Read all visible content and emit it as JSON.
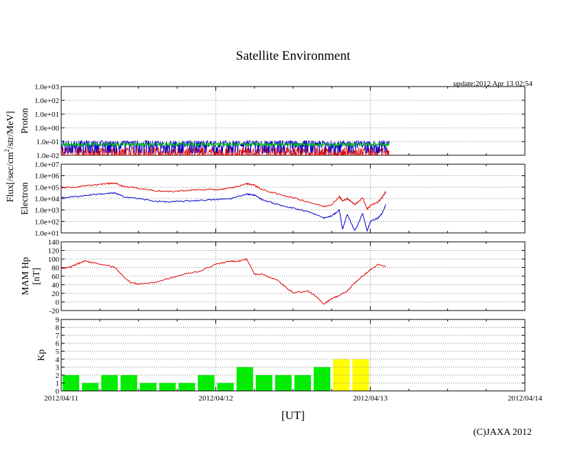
{
  "page": {
    "title": "Satellite Environment",
    "update": "update:2012 Apr 13 02:54",
    "flux_label": "Flux[/sec/cm",
    "flux_label_sup": "2",
    "flux_label_rest": "/str/MeV]",
    "xaxis_label": "[UT]",
    "copyright": "(C)JAXA 2012"
  },
  "colors": {
    "red": "#e00000",
    "blue": "#0000c8",
    "green": "#00c800",
    "kp_green": "#00ee00",
    "kp_yellow": "#ffff00",
    "grid": "#888888"
  },
  "chart_data": [
    {
      "type": "line",
      "panel": "proton",
      "ylabel": "Proton",
      "yscale": "log",
      "ylim": [
        0.01,
        1000
      ],
      "yticks": [
        "1.0e-02",
        "1.0e-01",
        "1.0e+00",
        "1.0e+01",
        "1.0e+02",
        "1.0e+03"
      ],
      "xlim": [
        "2012/04/11",
        "2012/04/14"
      ],
      "xticks": [
        "2012/04/11",
        "2012/04/12",
        "2012/04/13",
        "2012/04/14"
      ],
      "grid": true,
      "data_end": "2012/04/13 02:54",
      "series": [
        {
          "color": "blue",
          "level_typical": 0.07,
          "level_range": [
            0.03,
            0.12
          ]
        },
        {
          "color": "green",
          "level_typical": 0.06,
          "level_range": [
            0.045,
            0.08
          ]
        },
        {
          "color": "red",
          "level_typical": 0.02,
          "level_range": [
            0.01,
            0.04
          ]
        }
      ]
    },
    {
      "type": "line",
      "panel": "electron",
      "ylabel": "Electron",
      "yscale": "log",
      "ylim": [
        10,
        10000000
      ],
      "yticks": [
        "1.0e+01",
        "1.0e+02",
        "1.0e+03",
        "1.0e+04",
        "1.0e+05",
        "1.0e+06",
        "1.0e+07"
      ],
      "xlim": [
        "2012/04/11",
        "2012/04/14"
      ],
      "grid": true,
      "series": [
        {
          "color": "red",
          "x": [
            0,
            0.1,
            0.2,
            0.3,
            0.35,
            0.4,
            0.5,
            0.6,
            0.7,
            0.8,
            0.9,
            1.0,
            1.1,
            1.2,
            1.25,
            1.3,
            1.4,
            1.5,
            1.6,
            1.7,
            1.75,
            1.8,
            1.82,
            1.85,
            1.9,
            1.95,
            1.98,
            2.0,
            2.05,
            2.08,
            2.1
          ],
          "y": [
            90000,
            100000,
            150000,
            200000,
            220000,
            120000,
            80000,
            50000,
            40000,
            50000,
            60000,
            60000,
            80000,
            200000,
            150000,
            60000,
            25000,
            12000,
            5000,
            2000,
            3000,
            15000,
            6000,
            10000,
            3000,
            12000,
            1200,
            2500,
            5000,
            15000,
            40000
          ]
        },
        {
          "color": "blue",
          "x": [
            0,
            0.1,
            0.2,
            0.3,
            0.35,
            0.4,
            0.5,
            0.6,
            0.7,
            0.8,
            0.9,
            1.0,
            1.1,
            1.2,
            1.25,
            1.3,
            1.4,
            1.5,
            1.6,
            1.7,
            1.75,
            1.8,
            1.82,
            1.85,
            1.9,
            1.95,
            1.98,
            2.0,
            2.05,
            2.08,
            2.1
          ],
          "y": [
            12000,
            15000,
            22000,
            28000,
            30000,
            15000,
            10000,
            6000,
            5000,
            6000,
            7000,
            8000,
            10000,
            25000,
            20000,
            8000,
            3000,
            1500,
            700,
            200,
            300,
            1000,
            20,
            400,
            15,
            500,
            15,
            100,
            200,
            600,
            3000
          ]
        }
      ]
    },
    {
      "type": "line",
      "panel": "magnetic",
      "ylabel": "MAM Hp [nT]",
      "ylim": [
        -20,
        140
      ],
      "yticks": [
        "-20",
        "0",
        "20",
        "40",
        "60",
        "80",
        "100",
        "120",
        "140"
      ],
      "xlim": [
        "2012/04/11",
        "2012/04/14"
      ],
      "grid": true,
      "series": [
        {
          "color": "red",
          "x": [
            0,
            0.05,
            0.1,
            0.15,
            0.2,
            0.3,
            0.35,
            0.4,
            0.45,
            0.5,
            0.6,
            0.7,
            0.8,
            0.9,
            1.0,
            1.1,
            1.15,
            1.2,
            1.25,
            1.3,
            1.4,
            1.45,
            1.5,
            1.6,
            1.65,
            1.7,
            1.75,
            1.8,
            1.85,
            1.9,
            1.95,
            2.0,
            2.05,
            2.1
          ],
          "y": [
            78,
            80,
            88,
            95,
            92,
            85,
            80,
            60,
            45,
            42,
            45,
            55,
            65,
            72,
            88,
            95,
            95,
            100,
            65,
            65,
            50,
            35,
            22,
            25,
            12,
            -5,
            8,
            15,
            25,
            45,
            60,
            75,
            87,
            82
          ]
        }
      ]
    },
    {
      "type": "bar",
      "panel": "kp",
      "ylabel": "Kp",
      "ylim": [
        0,
        9
      ],
      "yticks": [
        "0",
        "1",
        "2",
        "3",
        "4",
        "5",
        "6",
        "7",
        "8",
        "9"
      ],
      "xlim": [
        "2012/04/11",
        "2012/04/14"
      ],
      "xticks": [
        "2012/04/11",
        "2012/04/12",
        "2012/04/13",
        "2012/04/14"
      ],
      "grid": true,
      "bin_hours": 3,
      "values": [
        2,
        1,
        2,
        2,
        1,
        1,
        1,
        2,
        1,
        3,
        2,
        2,
        2,
        3,
        4,
        4
      ],
      "colors": [
        "green",
        "green",
        "green",
        "green",
        "green",
        "green",
        "green",
        "green",
        "green",
        "green",
        "green",
        "green",
        "green",
        "green",
        "yellow",
        "yellow"
      ]
    }
  ]
}
